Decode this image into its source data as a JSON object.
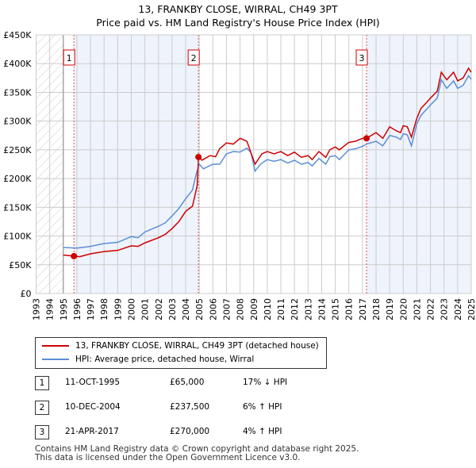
{
  "chart_data": {
    "type": "line",
    "title": "13, FRANKBY CLOSE, WIRRAL, CH49 3PT",
    "subtitle": "Price paid vs. HM Land Registry's House Price Index (HPI)",
    "xlim": [
      1993,
      2025
    ],
    "ylim": [
      0,
      450000
    ],
    "x_ticks": [
      "1993",
      "1994",
      "1995",
      "1996",
      "1997",
      "1998",
      "1999",
      "2000",
      "2001",
      "2002",
      "2003",
      "2004",
      "2005",
      "2006",
      "2007",
      "2008",
      "2009",
      "2010",
      "2011",
      "2012",
      "2013",
      "2014",
      "2015",
      "2016",
      "2017",
      "2018",
      "2019",
      "2020",
      "2021",
      "2022",
      "2023",
      "2024",
      "2025"
    ],
    "y_ticks": [
      {
        "v": 0,
        "label": "£0"
      },
      {
        "v": 50000,
        "label": "£50K"
      },
      {
        "v": 100000,
        "label": "£100K"
      },
      {
        "v": 150000,
        "label": "£150K"
      },
      {
        "v": 200000,
        "label": "£200K"
      },
      {
        "v": 250000,
        "label": "£250K"
      },
      {
        "v": 300000,
        "label": "£300K"
      },
      {
        "v": 350000,
        "label": "£350K"
      },
      {
        "v": 400000,
        "label": "£400K"
      },
      {
        "v": 450000,
        "label": "£450K"
      }
    ],
    "grid": true,
    "series": [
      {
        "name": "13, FRANKBY CLOSE, WIRRAL, CH49 3PT (detached house)",
        "color": "#cc0000",
        "points": [
          [
            1995,
            67
          ],
          [
            1995.78,
            65
          ],
          [
            1996.2,
            64
          ],
          [
            1997,
            69
          ],
          [
            1998,
            73
          ],
          [
            1999,
            75
          ],
          [
            2000,
            83
          ],
          [
            2000.5,
            82
          ],
          [
            2001,
            88
          ],
          [
            2002,
            97
          ],
          [
            2002.5,
            103
          ],
          [
            2003,
            113
          ],
          [
            2003.5,
            125
          ],
          [
            2004,
            143
          ],
          [
            2004.5,
            152
          ],
          [
            2004.85,
            188
          ],
          [
            2004.94,
            237.5
          ],
          [
            2005.2,
            232
          ],
          [
            2005.8,
            240
          ],
          [
            2006.2,
            238
          ],
          [
            2006.5,
            252
          ],
          [
            2007,
            262
          ],
          [
            2007.5,
            260
          ],
          [
            2008,
            270
          ],
          [
            2008.5,
            265
          ],
          [
            2009.1,
            225
          ],
          [
            2009.6,
            243
          ],
          [
            2010,
            247
          ],
          [
            2010.5,
            243
          ],
          [
            2011,
            247
          ],
          [
            2011.5,
            240
          ],
          [
            2012,
            246
          ],
          [
            2012.5,
            237
          ],
          [
            2013,
            240
          ],
          [
            2013.3,
            233
          ],
          [
            2013.8,
            247
          ],
          [
            2014.3,
            237
          ],
          [
            2014.6,
            250
          ],
          [
            2015,
            255
          ],
          [
            2015.3,
            250
          ],
          [
            2016,
            263
          ],
          [
            2016.5,
            265
          ],
          [
            2017,
            270
          ],
          [
            2017.3,
            270
          ],
          [
            2018,
            280
          ],
          [
            2018.5,
            270
          ],
          [
            2019,
            290
          ],
          [
            2019.5,
            283
          ],
          [
            2019.8,
            280
          ],
          [
            2020,
            292
          ],
          [
            2020.3,
            290
          ],
          [
            2020.6,
            272
          ],
          [
            2021,
            305
          ],
          [
            2021.3,
            322
          ],
          [
            2021.7,
            332
          ],
          [
            2022,
            340
          ],
          [
            2022.5,
            352
          ],
          [
            2022.8,
            385
          ],
          [
            2023.2,
            372
          ],
          [
            2023.7,
            385
          ],
          [
            2024,
            370
          ],
          [
            2024.4,
            375
          ],
          [
            2024.8,
            392
          ],
          [
            2025,
            385
          ]
        ]
      },
      {
        "name": "HPI: Average price, detached house, Wirral",
        "color": "#5b8fd4",
        "points": [
          [
            1995,
            80
          ],
          [
            1996,
            79
          ],
          [
            1997,
            82
          ],
          [
            1998,
            87
          ],
          [
            1999,
            89
          ],
          [
            2000,
            99
          ],
          [
            2000.5,
            97
          ],
          [
            2001,
            107
          ],
          [
            2002,
            117
          ],
          [
            2002.5,
            123
          ],
          [
            2003,
            135
          ],
          [
            2003.5,
            148
          ],
          [
            2004,
            165
          ],
          [
            2004.5,
            180
          ],
          [
            2004.8,
            210
          ],
          [
            2005,
            225
          ],
          [
            2005.3,
            217
          ],
          [
            2006,
            225
          ],
          [
            2006.5,
            225
          ],
          [
            2007,
            243
          ],
          [
            2007.5,
            247
          ],
          [
            2008,
            246
          ],
          [
            2008.5,
            253
          ],
          [
            2008.8,
            245
          ],
          [
            2009.1,
            213
          ],
          [
            2009.5,
            225
          ],
          [
            2010,
            233
          ],
          [
            2010.5,
            230
          ],
          [
            2011,
            233
          ],
          [
            2011.5,
            227
          ],
          [
            2012,
            232
          ],
          [
            2012.5,
            225
          ],
          [
            2013,
            228
          ],
          [
            2013.3,
            222
          ],
          [
            2013.8,
            235
          ],
          [
            2014.3,
            225
          ],
          [
            2014.6,
            238
          ],
          [
            2015,
            240
          ],
          [
            2015.3,
            233
          ],
          [
            2016,
            250
          ],
          [
            2016.5,
            252
          ],
          [
            2017,
            256
          ],
          [
            2017.3,
            260
          ],
          [
            2018,
            265
          ],
          [
            2018.5,
            257
          ],
          [
            2019,
            275
          ],
          [
            2019.5,
            272
          ],
          [
            2019.8,
            268
          ],
          [
            2020,
            278
          ],
          [
            2020.3,
            276
          ],
          [
            2020.6,
            257
          ],
          [
            2021,
            295
          ],
          [
            2021.3,
            310
          ],
          [
            2021.7,
            320
          ],
          [
            2022,
            328
          ],
          [
            2022.5,
            340
          ],
          [
            2022.8,
            372
          ],
          [
            2023.2,
            357
          ],
          [
            2023.7,
            370
          ],
          [
            2024,
            357
          ],
          [
            2024.4,
            362
          ],
          [
            2024.8,
            379
          ],
          [
            2025,
            373
          ]
        ]
      }
    ],
    "sales": [
      {
        "n": "1",
        "x": 1995.78,
        "y": 65000
      },
      {
        "n": "2",
        "x": 2004.94,
        "y": 237500
      },
      {
        "n": "3",
        "x": 2017.3,
        "y": 270000
      }
    ],
    "legend_placement": "below"
  },
  "table": [
    {
      "n": "1",
      "date": "11-OCT-1995",
      "price": "£65,000",
      "hpi": "17% ↓ HPI"
    },
    {
      "n": "2",
      "date": "10-DEC-2004",
      "price": "£237,500",
      "hpi": "6% ↑ HPI"
    },
    {
      "n": "3",
      "date": "21-APR-2017",
      "price": "£270,000",
      "hpi": "4% ↑ HPI"
    }
  ],
  "footer": [
    "Contains HM Land Registry data © Crown copyright and database right 2025.",
    "This data is licensed under the Open Government Licence v3.0."
  ]
}
